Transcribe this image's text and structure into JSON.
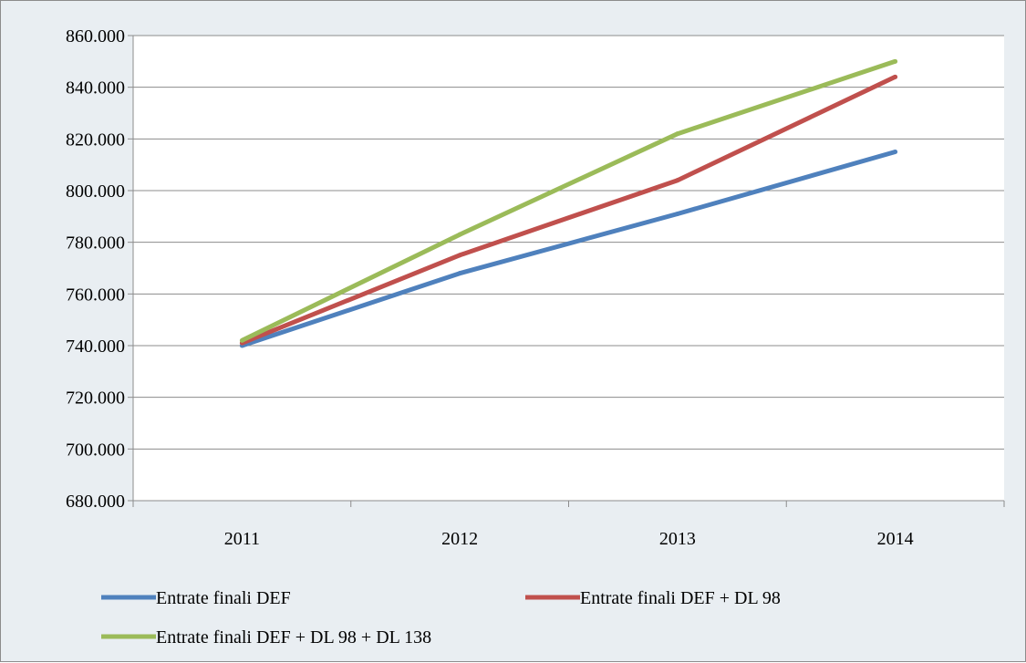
{
  "chart_data": {
    "type": "line",
    "title": "",
    "xlabel": "",
    "ylabel": "",
    "categories": [
      "2011",
      "2012",
      "2013",
      "2014"
    ],
    "ylim": [
      680000,
      860000
    ],
    "yticks": [
      680000,
      700000,
      720000,
      740000,
      760000,
      780000,
      800000,
      820000,
      840000,
      860000
    ],
    "ytick_labels": [
      "680.000",
      "700.000",
      "720.000",
      "740.000",
      "760.000",
      "780.000",
      "800.000",
      "820.000",
      "840.000",
      "860.000"
    ],
    "grid": true,
    "legend_position": "bottom",
    "series": [
      {
        "name": "Entrate finali DEF",
        "color": "#4f81bd",
        "values": [
          740000,
          768000,
          791000,
          815000
        ]
      },
      {
        "name": "Entrate finali DEF + DL 98",
        "color": "#c0504d",
        "values": [
          741000,
          775000,
          804000,
          844000
        ]
      },
      {
        "name": "Entrate finali DEF + DL 98 + DL 138",
        "color": "#9bbb59",
        "values": [
          742000,
          783000,
          822000,
          850000
        ]
      }
    ]
  }
}
